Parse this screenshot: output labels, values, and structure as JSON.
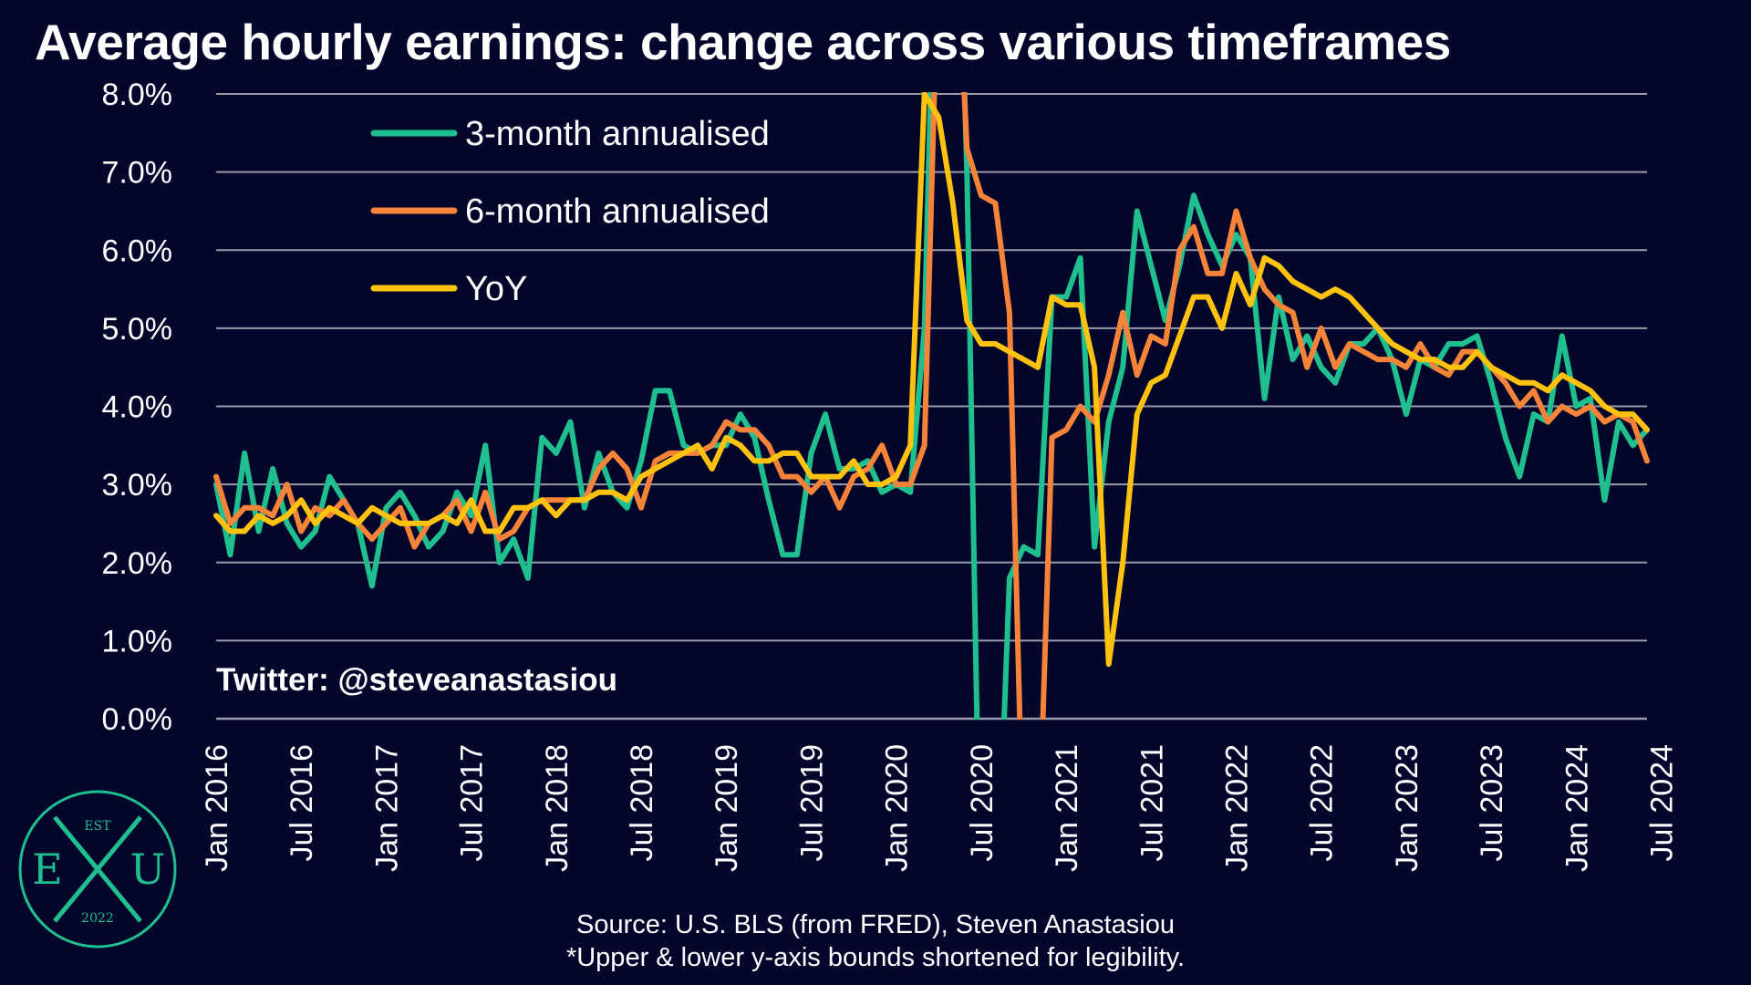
{
  "title": "Average hourly earnings: change across various timeframes",
  "watermark": "Twitter: @steveanastasiou",
  "source_lines": [
    "Source: U.S. BLS (from FRED), Steven Anastasiou",
    "*Upper & lower y-axis bounds shortened for legibility."
  ],
  "logo": {
    "top": "EST",
    "left": "E",
    "right": "U",
    "bottom": "2022",
    "color": "#1fbf8f"
  },
  "chart_data": {
    "type": "line",
    "title": "Average hourly earnings: change across various timeframes",
    "xlabel": "",
    "ylabel": "",
    "ylim": [
      0,
      8
    ],
    "yticks": [
      "0.0%",
      "1.0%",
      "2.0%",
      "3.0%",
      "4.0%",
      "5.0%",
      "6.0%",
      "7.0%",
      "8.0%"
    ],
    "x_start": "2016-01",
    "x_end": "2024-07",
    "xticks": [
      "Jan 2016",
      "Jul 2016",
      "Jan 2017",
      "Jul 2017",
      "Jan 2018",
      "Jul 2018",
      "Jan 2019",
      "Jul 2019",
      "Jan 2020",
      "Jul 2020",
      "Jan 2021",
      "Jul 2021",
      "Jan 2022",
      "Jul 2022",
      "Jan 2023",
      "Jul 2023",
      "Jan 2024",
      "Jul 2024"
    ],
    "grid": true,
    "legend": "top-left",
    "series": [
      {
        "name": "3-month annualised",
        "color": "#1fbf8f",
        "values": [
          3.0,
          2.1,
          3.4,
          2.4,
          3.2,
          2.5,
          2.2,
          2.4,
          3.1,
          2.8,
          2.5,
          1.7,
          2.7,
          2.9,
          2.6,
          2.2,
          2.4,
          2.9,
          2.6,
          3.5,
          2.0,
          2.3,
          1.8,
          3.6,
          3.4,
          3.8,
          2.7,
          3.4,
          2.9,
          2.7,
          3.3,
          4.2,
          4.2,
          3.5,
          3.4,
          3.5,
          3.5,
          3.9,
          3.6,
          2.8,
          2.1,
          2.1,
          3.4,
          3.9,
          3.2,
          3.2,
          3.3,
          2.9,
          3.0,
          2.9,
          5.0,
          12.0,
          13.0,
          7.0,
          -3.0,
          -3.0,
          1.8,
          2.2,
          2.1,
          5.4,
          5.4,
          5.9,
          2.2,
          3.8,
          4.5,
          6.5,
          5.8,
          5.1,
          5.8,
          6.7,
          6.2,
          5.8,
          6.2,
          5.9,
          4.1,
          5.4,
          4.6,
          4.9,
          4.5,
          4.3,
          4.8,
          4.8,
          5.0,
          4.6,
          3.9,
          4.6,
          4.5,
          4.8,
          4.8,
          4.9,
          4.3,
          3.6,
          3.1,
          3.9,
          3.8,
          4.9,
          4.0,
          4.1,
          2.8,
          3.8,
          3.5,
          3.7
        ]
      },
      {
        "name": "6-month annualised",
        "color": "#f5843a",
        "values": [
          3.1,
          2.5,
          2.7,
          2.7,
          2.6,
          3.0,
          2.4,
          2.7,
          2.6,
          2.8,
          2.5,
          2.3,
          2.5,
          2.7,
          2.2,
          2.5,
          2.6,
          2.8,
          2.4,
          2.9,
          2.3,
          2.4,
          2.7,
          2.8,
          2.8,
          2.8,
          2.8,
          3.2,
          3.4,
          3.2,
          2.7,
          3.3,
          3.4,
          3.4,
          3.4,
          3.5,
          3.8,
          3.7,
          3.7,
          3.5,
          3.1,
          3.1,
          2.9,
          3.1,
          2.7,
          3.1,
          3.2,
          3.5,
          3.0,
          3.0,
          3.5,
          10.0,
          11.0,
          7.3,
          6.7,
          6.6,
          5.2,
          -2.0,
          -2.0,
          3.6,
          3.7,
          4.0,
          3.8,
          4.4,
          5.2,
          4.4,
          4.9,
          4.8,
          6.0,
          6.3,
          5.7,
          5.7,
          6.5,
          5.9,
          5.5,
          5.3,
          5.2,
          4.5,
          5.0,
          4.5,
          4.8,
          4.7,
          4.6,
          4.6,
          4.5,
          4.8,
          4.5,
          4.4,
          4.7,
          4.7,
          4.5,
          4.3,
          4.0,
          4.2,
          3.8,
          4.0,
          3.9,
          4.0,
          3.8,
          3.9,
          3.8,
          3.3
        ]
      },
      {
        "name": "YoY",
        "color": "#ffc20e",
        "values": [
          2.6,
          2.4,
          2.4,
          2.6,
          2.5,
          2.6,
          2.8,
          2.5,
          2.7,
          2.6,
          2.5,
          2.7,
          2.6,
          2.5,
          2.5,
          2.5,
          2.6,
          2.5,
          2.8,
          2.4,
          2.4,
          2.7,
          2.7,
          2.8,
          2.6,
          2.8,
          2.8,
          2.9,
          2.9,
          2.8,
          3.1,
          3.2,
          3.3,
          3.4,
          3.5,
          3.2,
          3.6,
          3.5,
          3.3,
          3.3,
          3.4,
          3.4,
          3.1,
          3.1,
          3.1,
          3.3,
          3.0,
          3.0,
          3.1,
          3.5,
          8.0,
          7.7,
          6.6,
          5.1,
          4.8,
          4.8,
          4.7,
          4.6,
          4.5,
          5.4,
          5.3,
          5.3,
          4.5,
          0.7,
          2.0,
          3.9,
          4.3,
          4.4,
          4.9,
          5.4,
          5.4,
          5.0,
          5.7,
          5.3,
          5.9,
          5.8,
          5.6,
          5.5,
          5.4,
          5.5,
          5.4,
          5.2,
          5.0,
          4.8,
          4.7,
          4.6,
          4.6,
          4.5,
          4.5,
          4.7,
          4.5,
          4.4,
          4.3,
          4.3,
          4.2,
          4.4,
          4.3,
          4.2,
          4.0,
          3.9,
          3.9,
          3.7
        ]
      }
    ]
  }
}
